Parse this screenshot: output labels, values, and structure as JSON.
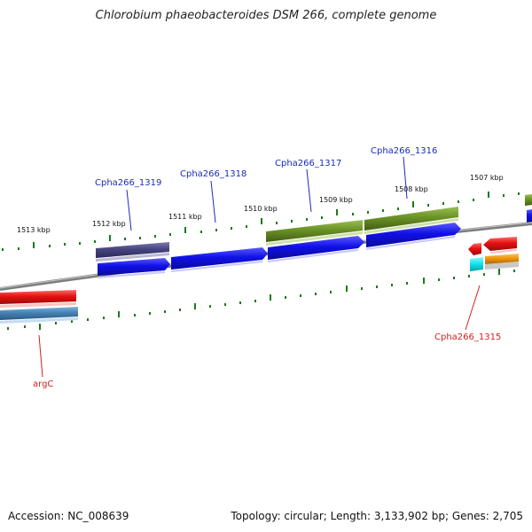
{
  "title": "Chlorobium phaeobacteroides DSM 266, complete genome",
  "footer": {
    "accession": "Accession: NC_008639",
    "summary": "Topology: circular; Length: 3,133,902 bp; Genes: 2,705"
  },
  "ruler": [
    "1513 kbp",
    "1512 kbp",
    "1511 kbp",
    "1510 kbp",
    "1509 kbp",
    "1508 kbp",
    "1507 kbp"
  ],
  "gene_labels": {
    "cpha1319": "Cpha266_1319",
    "cpha1318": "Cpha266_1318",
    "cpha1317": "Cpha266_1317",
    "cpha1316": "Cpha266_1316",
    "cpha1315": "Cpha266_1315",
    "argc": "argC"
  },
  "colors": {
    "forward_gene": "#1010e6",
    "reverse_gene": "#e61010",
    "olive_gene": "#6a9224",
    "slate_gene": "#47457f",
    "steel_gene": "#4682b4",
    "cyan_gene": "#12e6f0",
    "orange_gene": "#f0960a",
    "tick": "#1b7a1b",
    "backbone": "#8a8a8a"
  }
}
